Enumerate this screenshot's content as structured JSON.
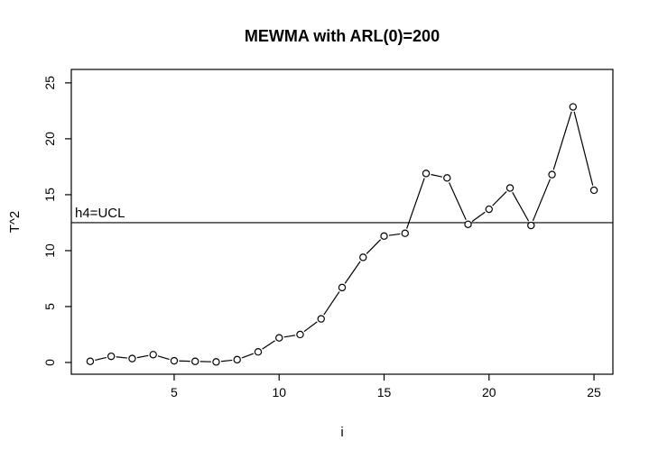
{
  "window": {
    "background": "#ffffff"
  },
  "chart_data": {
    "type": "line",
    "title": "MEWMA with ARL(0)=200",
    "xlabel": "i",
    "ylabel": "T^2",
    "series": [
      {
        "name": "T^2",
        "marker": "open-circle",
        "line": "segments-with-marker-gaps",
        "x": [
          1,
          2,
          3,
          4,
          5,
          6,
          7,
          8,
          9,
          10,
          11,
          12,
          13,
          14,
          15,
          16,
          17,
          18,
          19,
          20,
          21,
          22,
          23,
          24,
          25
        ],
        "values": [
          0.1,
          0.55,
          0.35,
          0.7,
          0.15,
          0.1,
          0.05,
          0.25,
          0.95,
          2.2,
          2.5,
          3.9,
          6.7,
          9.4,
          11.3,
          11.55,
          16.9,
          16.5,
          12.35,
          13.7,
          15.6,
          12.25,
          16.8,
          22.85,
          15.4
        ]
      }
    ],
    "reference_line": {
      "label": "h4=UCL",
      "value": 12.5,
      "orientation": "horizontal"
    },
    "xlim": [
      0.1,
      25.9
    ],
    "ylim": [
      -1.05,
      26.2
    ],
    "xticks": [
      5,
      10,
      15,
      20,
      25
    ],
    "yticks": [
      0,
      5,
      10,
      15,
      20,
      25
    ],
    "grid": false,
    "legend": "none",
    "colors": {
      "foreground": "#000000",
      "background": "#ffffff"
    }
  }
}
